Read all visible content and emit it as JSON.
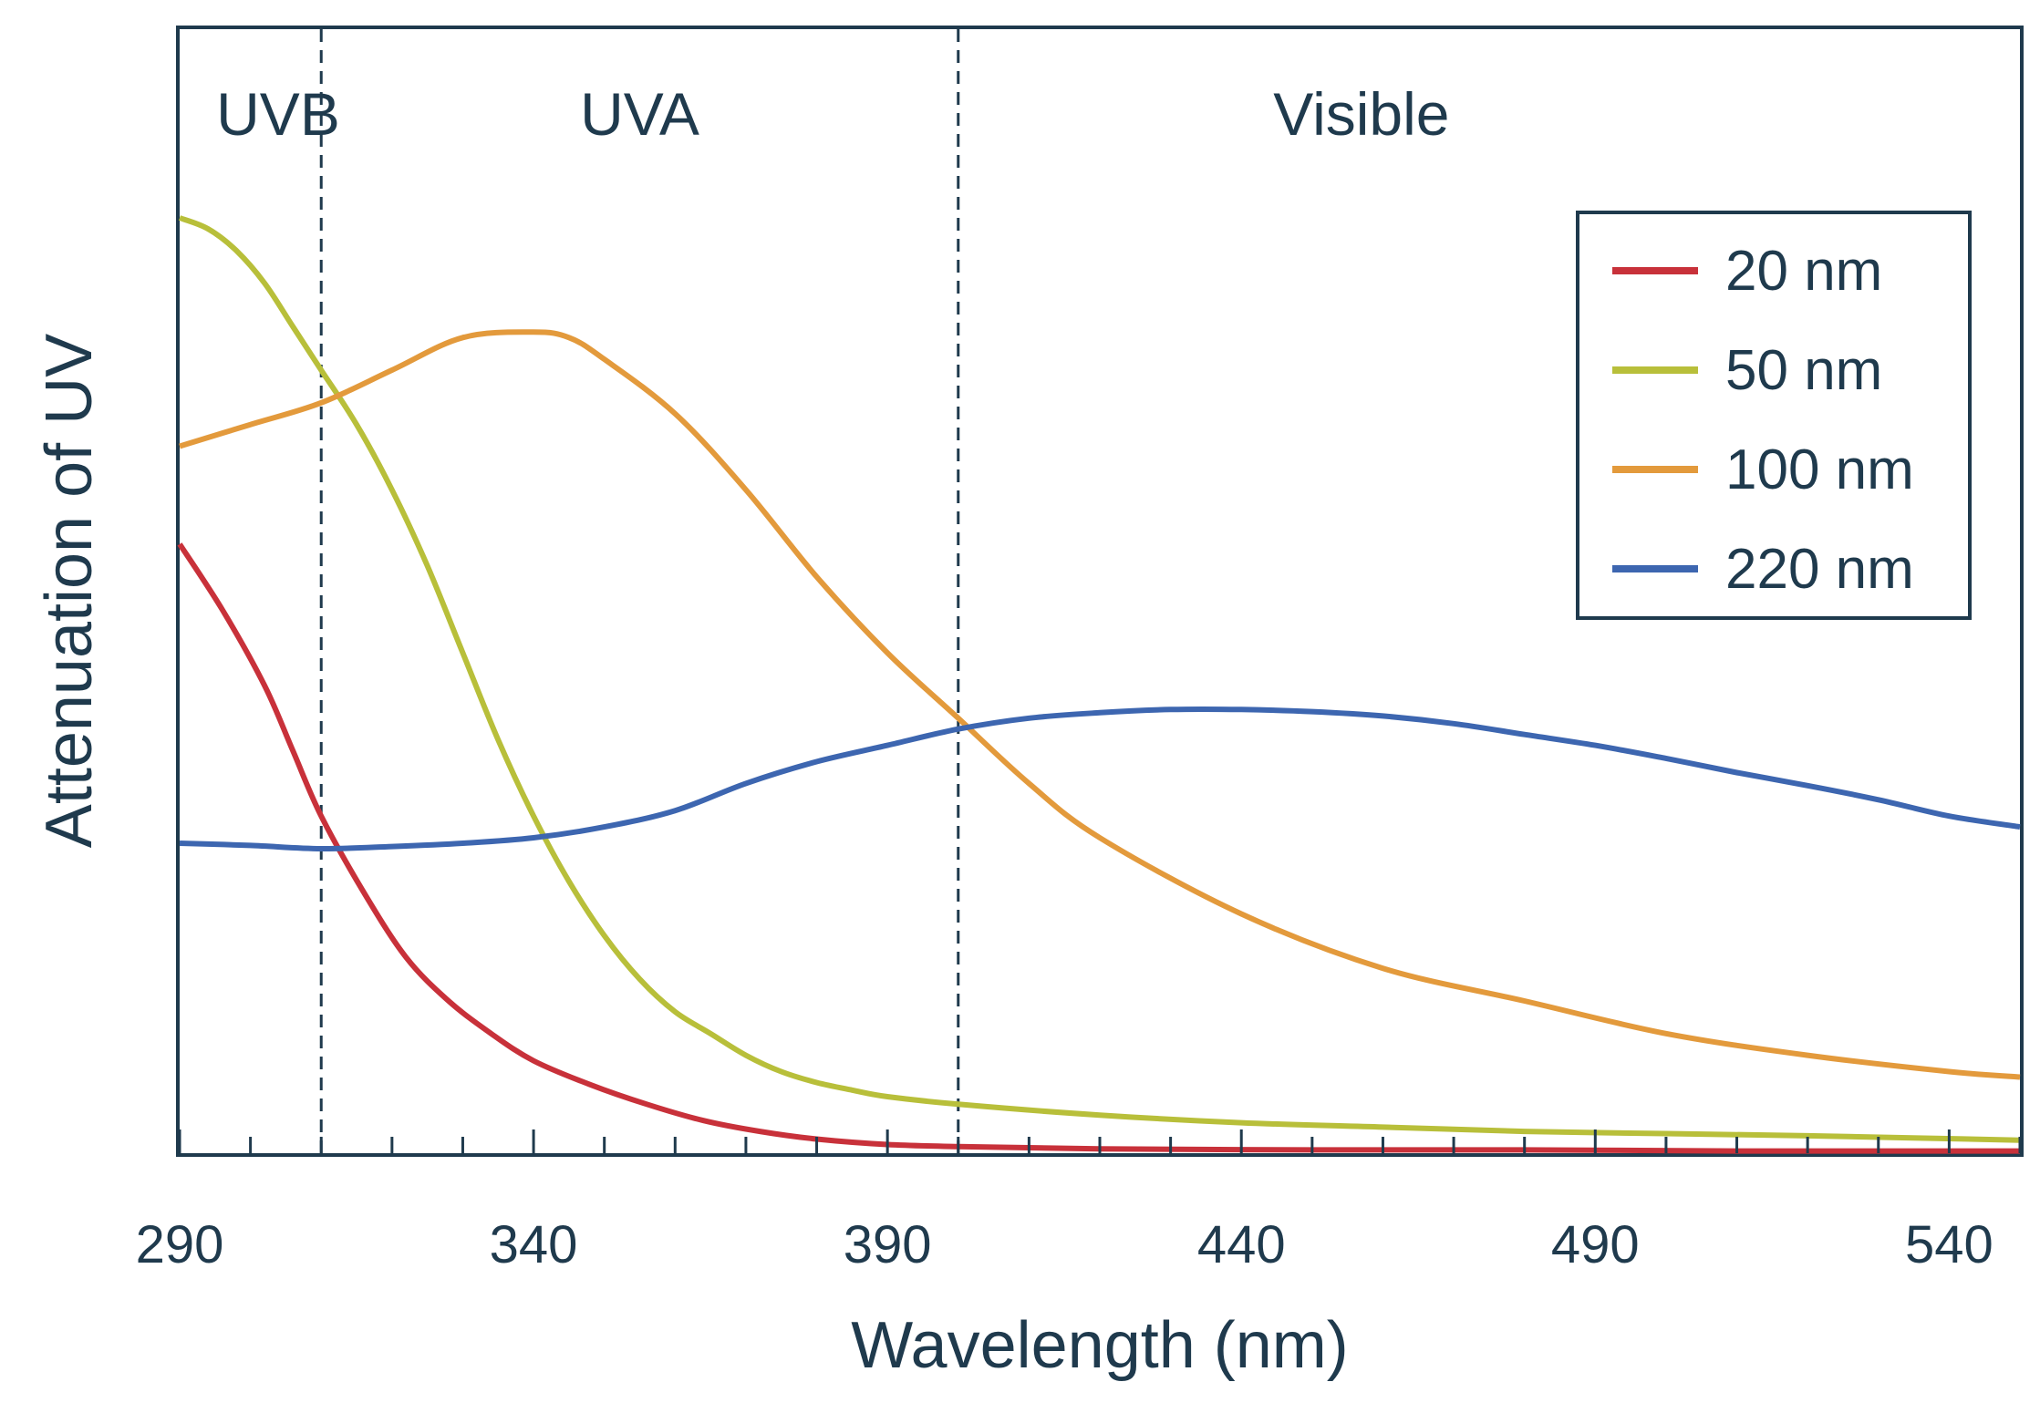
{
  "chart_data": {
    "type": "line",
    "xlabel": "Wavelength (nm)",
    "ylabel": "Attenuation of UV",
    "xlim": [
      290,
      550
    ],
    "ylim": [
      0,
      1
    ],
    "x_ticks": [
      "290",
      "340",
      "390",
      "440",
      "490",
      "540"
    ],
    "regions": [
      {
        "label": "UVB",
        "from": 290,
        "to": 310
      },
      {
        "label": "UVA",
        "from": 310,
        "to": 400
      },
      {
        "label": "Visible",
        "from": 400,
        "to": 550
      }
    ],
    "region_dividers": [
      310,
      400
    ],
    "legend_position": "top-right",
    "grid": false,
    "series": [
      {
        "name": "20 nm",
        "color": "#c8313a",
        "x": [
          290,
          296,
          302,
          306,
          310,
          316,
          322,
          328,
          334,
          340,
          348,
          356,
          364,
          372,
          380,
          390,
          400,
          420,
          450,
          480,
          510,
          550
        ],
        "y": [
          0.56,
          0.5,
          0.43,
          0.37,
          0.31,
          0.24,
          0.18,
          0.14,
          0.11,
          0.085,
          0.063,
          0.045,
          0.03,
          0.02,
          0.013,
          0.008,
          0.006,
          0.004,
          0.003,
          0.003,
          0.002,
          0.002
        ]
      },
      {
        "name": "50 nm",
        "color": "#b8bf3a",
        "x": [
          290,
          294,
          298,
          302,
          306,
          310,
          315,
          320,
          325,
          330,
          335,
          340,
          345,
          350,
          355,
          360,
          365,
          370,
          375,
          380,
          385,
          390,
          400,
          420,
          440,
          460,
          480,
          500,
          520,
          550
        ],
        "y": [
          0.86,
          0.85,
          0.83,
          0.8,
          0.76,
          0.72,
          0.67,
          0.61,
          0.54,
          0.46,
          0.38,
          0.31,
          0.25,
          0.2,
          0.16,
          0.13,
          0.11,
          0.09,
          0.075,
          0.065,
          0.058,
          0.052,
          0.045,
          0.035,
          0.028,
          0.024,
          0.02,
          0.018,
          0.016,
          0.012
        ]
      },
      {
        "name": "100 nm",
        "color": "#e39a3c",
        "x": [
          290,
          300,
          310,
          320,
          330,
          340,
          345,
          350,
          360,
          370,
          380,
          390,
          400,
          410,
          420,
          440,
          460,
          480,
          500,
          520,
          540,
          550
        ],
        "y": [
          0.65,
          0.67,
          0.69,
          0.72,
          0.75,
          0.755,
          0.75,
          0.73,
          0.68,
          0.61,
          0.53,
          0.46,
          0.4,
          0.34,
          0.29,
          0.22,
          0.17,
          0.14,
          0.11,
          0.09,
          0.075,
          0.07
        ]
      },
      {
        "name": "220 nm",
        "color": "#3d66b0",
        "x": [
          290,
          300,
          310,
          320,
          330,
          340,
          350,
          360,
          370,
          380,
          390,
          400,
          410,
          420,
          430,
          440,
          450,
          460,
          470,
          480,
          490,
          500,
          510,
          520,
          530,
          540,
          550
        ],
        "y": [
          0.285,
          0.283,
          0.28,
          0.282,
          0.285,
          0.29,
          0.3,
          0.315,
          0.34,
          0.36,
          0.375,
          0.39,
          0.4,
          0.405,
          0.408,
          0.408,
          0.406,
          0.402,
          0.395,
          0.385,
          0.375,
          0.363,
          0.35,
          0.338,
          0.325,
          0.31,
          0.3
        ]
      }
    ]
  }
}
